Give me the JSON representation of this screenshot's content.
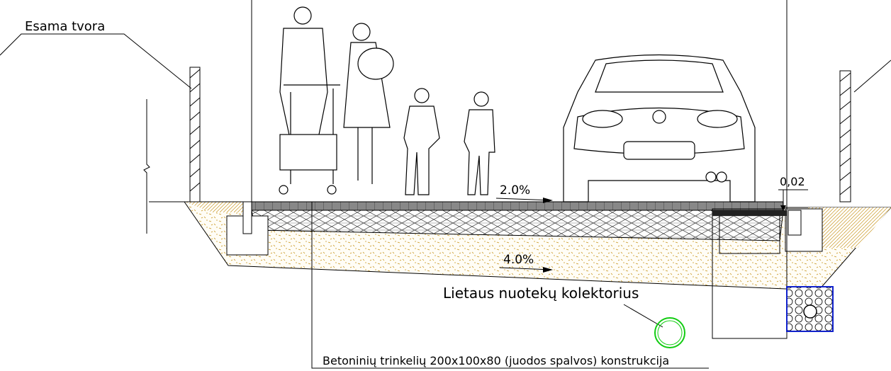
{
  "annotations": [
    "Esama tvora",
    "2.0%",
    "0,02",
    "4.0%",
    "Lietaus nuotekų kolektorius",
    "Betoninių trinkelių 200x100x80 (juodos spalvos) konstrukcija"
  ]
}
